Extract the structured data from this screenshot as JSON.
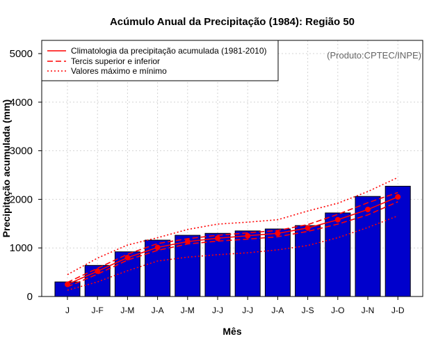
{
  "chart_data": {
    "type": "bar",
    "title": "Acúmulo Anual da Precipitação (1984): Região 50",
    "xlabel": "Mês",
    "ylabel": "Precipitação acumulada (mm)",
    "ylim": [
      0,
      5000
    ],
    "yticks": [
      0,
      1000,
      2000,
      3000,
      4000,
      5000
    ],
    "grid": true,
    "categories": [
      "J",
      "J-F",
      "J-M",
      "J-A",
      "J-M",
      "J-J",
      "J-J",
      "J-A",
      "J-S",
      "J-O",
      "J-N",
      "J-D"
    ],
    "bar_values": [
      300,
      640,
      920,
      1160,
      1260,
      1300,
      1350,
      1390,
      1460,
      1720,
      2060,
      2270
    ],
    "series": [
      {
        "name": "Climatologia da precipitação acumulada (1981-2010)",
        "style": "solid-with-points",
        "values": [
          250,
          520,
          800,
          1010,
          1130,
          1200,
          1250,
          1300,
          1410,
          1580,
          1790,
          2050
        ]
      },
      {
        "name": "Tercil superior",
        "style": "dashed",
        "values": [
          290,
          580,
          870,
          1090,
          1190,
          1260,
          1310,
          1360,
          1480,
          1690,
          1930,
          2140
        ]
      },
      {
        "name": "Tercil inferior",
        "style": "dashed",
        "values": [
          200,
          460,
          750,
          950,
          1080,
          1140,
          1180,
          1230,
          1340,
          1490,
          1680,
          1950
        ]
      },
      {
        "name": "Valor máximo",
        "style": "dotted",
        "values": [
          450,
          790,
          1060,
          1210,
          1380,
          1490,
          1530,
          1580,
          1760,
          1920,
          2160,
          2450
        ]
      },
      {
        "name": "Valor mínimo",
        "style": "dotted",
        "values": [
          130,
          300,
          530,
          730,
          810,
          860,
          900,
          960,
          1050,
          1210,
          1420,
          1660
        ]
      }
    ],
    "legend": {
      "position": "top-left",
      "entries": [
        {
          "label": "Climatologia da precipitação acumulada (1981-2010)",
          "style": "solid"
        },
        {
          "label": "Tercis superior e inferior",
          "style": "dashed"
        },
        {
          "label": "Valores máximo e mínimo",
          "style": "dotted"
        }
      ]
    },
    "credit": "(Produto:CPTEC/INPE)",
    "colors": {
      "bar_fill": "#0000cc",
      "bar_stroke": "#000000",
      "lines": "#ff0000",
      "grid": "#d3d3d3"
    }
  }
}
